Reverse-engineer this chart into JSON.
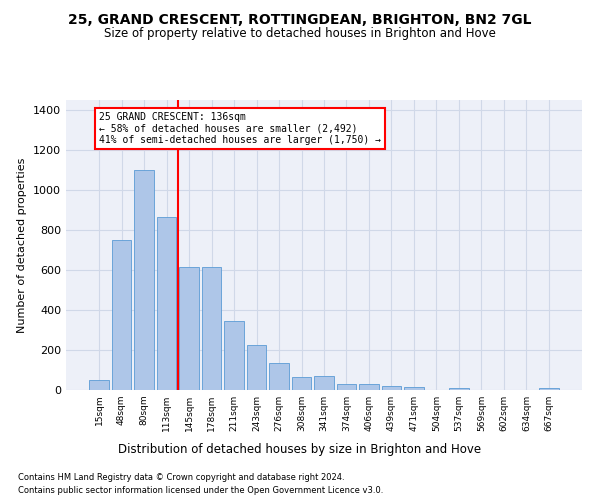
{
  "title": "25, GRAND CRESCENT, ROTTINGDEAN, BRIGHTON, BN2 7GL",
  "subtitle": "Size of property relative to detached houses in Brighton and Hove",
  "xlabel": "Distribution of detached houses by size in Brighton and Hove",
  "ylabel": "Number of detached properties",
  "footnote1": "Contains HM Land Registry data © Crown copyright and database right 2024.",
  "footnote2": "Contains public sector information licensed under the Open Government Licence v3.0.",
  "bar_labels": [
    "15sqm",
    "48sqm",
    "80sqm",
    "113sqm",
    "145sqm",
    "178sqm",
    "211sqm",
    "243sqm",
    "276sqm",
    "308sqm",
    "341sqm",
    "374sqm",
    "406sqm",
    "439sqm",
    "471sqm",
    "504sqm",
    "537sqm",
    "569sqm",
    "602sqm",
    "634sqm",
    "667sqm"
  ],
  "bar_values": [
    48,
    750,
    1100,
    865,
    615,
    615,
    345,
    225,
    135,
    65,
    70,
    30,
    30,
    20,
    15,
    0,
    10,
    0,
    0,
    0,
    10
  ],
  "bar_color": "#aec6e8",
  "bar_edgecolor": "#5b9bd5",
  "vline_x": 4.5,
  "vline_color": "red",
  "annotation_text": "25 GRAND CRESCENT: 136sqm\n← 58% of detached houses are smaller (2,492)\n41% of semi-detached houses are larger (1,750) →",
  "annotation_box_color": "white",
  "annotation_box_edgecolor": "red",
  "ylim": [
    0,
    1450
  ],
  "yticks": [
    0,
    200,
    400,
    600,
    800,
    1000,
    1200,
    1400
  ],
  "grid_color": "#d0d8e8",
  "bg_color": "#edf0f8",
  "title_fontsize": 10,
  "subtitle_fontsize": 8.5
}
